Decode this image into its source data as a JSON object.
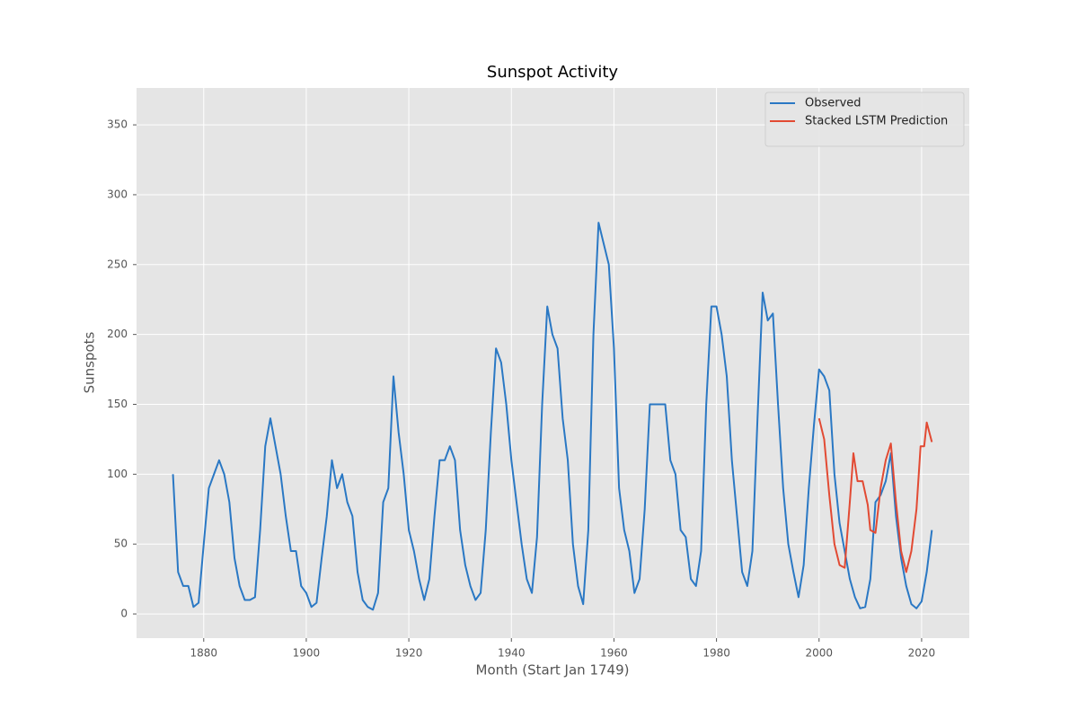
{
  "chart_data": {
    "type": "line",
    "title": "Sunspot Activity",
    "xlabel": "Month (Start Jan 1749)",
    "ylabel": "Sunspots",
    "xlim": [
      1866.9,
      2029.3
    ],
    "ylim": [
      -17.3,
      376.4
    ],
    "xticks": [
      1880,
      1900,
      1920,
      1940,
      1960,
      1980,
      2000,
      2020
    ],
    "yticks": [
      0,
      50,
      100,
      150,
      200,
      250,
      300,
      350
    ],
    "grid": true,
    "legend": "upper right",
    "series": [
      {
        "name": "Observed",
        "color": "#2a78c4",
        "x": [
          1874,
          1875,
          1876,
          1877,
          1878,
          1879,
          1880,
          1881,
          1882,
          1883,
          1884,
          1885,
          1886,
          1887,
          1888,
          1889,
          1890,
          1891,
          1892,
          1893,
          1894,
          1895,
          1896,
          1897,
          1898,
          1899,
          1900,
          1901,
          1902,
          1903,
          1904,
          1905,
          1906,
          1907,
          1908,
          1909,
          1910,
          1911,
          1912,
          1913,
          1914,
          1915,
          1916,
          1917,
          1918,
          1919,
          1920,
          1921,
          1922,
          1923,
          1924,
          1925,
          1926,
          1927,
          1928,
          1929,
          1930,
          1931,
          1932,
          1933,
          1934,
          1935,
          1936,
          1937,
          1938,
          1939,
          1940,
          1941,
          1942,
          1943,
          1944,
          1945,
          1946,
          1947,
          1948,
          1949,
          1950,
          1951,
          1952,
          1953,
          1954,
          1955,
          1956,
          1957,
          1958,
          1959,
          1960,
          1961,
          1962,
          1963,
          1964,
          1965,
          1966,
          1967,
          1968,
          1969,
          1970,
          1971,
          1972,
          1973,
          1974,
          1975,
          1976,
          1977,
          1978,
          1979,
          1980,
          1981,
          1982,
          1983,
          1984,
          1985,
          1986,
          1987,
          1988,
          1989,
          1990,
          1991,
          1992,
          1993,
          1994,
          1995,
          1996,
          1997,
          1998,
          1999,
          2000,
          2001,
          2002,
          2003,
          2004,
          2005,
          2006,
          2007,
          2008,
          2009,
          2010,
          2011,
          2012,
          2013,
          2014,
          2015,
          2016,
          2017,
          2018,
          2019,
          2020,
          2021,
          2022
        ],
        "values": [
          100,
          30,
          20,
          20,
          5,
          8,
          50,
          90,
          100,
          110,
          100,
          80,
          40,
          20,
          10,
          10,
          12,
          60,
          120,
          140,
          120,
          100,
          70,
          45,
          45,
          20,
          15,
          5,
          8,
          40,
          70,
          110,
          90,
          100,
          80,
          70,
          30,
          10,
          5,
          3,
          15,
          80,
          90,
          170,
          130,
          100,
          60,
          45,
          25,
          10,
          25,
          70,
          110,
          110,
          120,
          110,
          60,
          35,
          20,
          10,
          15,
          60,
          130,
          190,
          180,
          150,
          110,
          80,
          50,
          25,
          15,
          55,
          150,
          220,
          200,
          190,
          140,
          110,
          50,
          20,
          7,
          60,
          200,
          280,
          265,
          250,
          190,
          90,
          60,
          45,
          15,
          25,
          75,
          150,
          150,
          150,
          150,
          110,
          100,
          60,
          55,
          25,
          20,
          45,
          150,
          220,
          220,
          200,
          170,
          110,
          70,
          30,
          20,
          45,
          140,
          230,
          210,
          215,
          150,
          90,
          50,
          30,
          12,
          35,
          90,
          135,
          175,
          170,
          160,
          100,
          65,
          45,
          25,
          12,
          4,
          5,
          25,
          80,
          85,
          95,
          115,
          70,
          40,
          20,
          7,
          4,
          9,
          30,
          60
        ]
      },
      {
        "name": "Stacked LSTM Prediction",
        "color": "#e24a33",
        "x": [
          2000,
          2001,
          2002,
          2003,
          2004,
          2005,
          2006,
          2006.7,
          2007.5,
          2008.5,
          2009.5,
          2010,
          2011,
          2012,
          2013,
          2014,
          2015,
          2016,
          2017,
          2018,
          2019,
          2019.8,
          2020.5,
          2021,
          2022
        ],
        "values": [
          140,
          125,
          85,
          50,
          35,
          33,
          80,
          115,
          95,
          95,
          78,
          60,
          58,
          90,
          110,
          122,
          80,
          45,
          30,
          45,
          75,
          120,
          120,
          137,
          123
        ]
      }
    ]
  }
}
